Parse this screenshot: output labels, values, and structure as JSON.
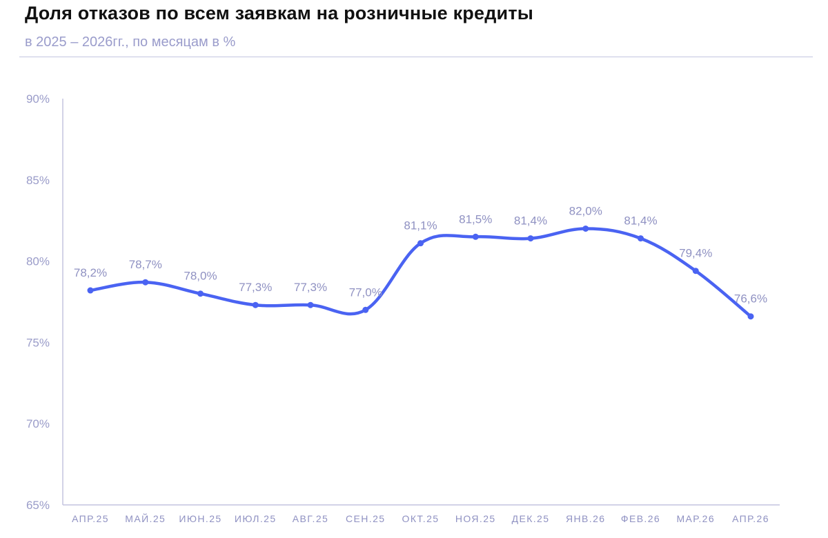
{
  "title": "Доля отказов по всем заявкам на розничные кредиты",
  "subtitle": "в 2025 – 2026гг., по месяцам в %",
  "chart_data": {
    "type": "line",
    "categories": [
      "АПР.25",
      "МАЙ.25",
      "ИЮН.25",
      "ИЮЛ.25",
      "АВГ.25",
      "СЕН.25",
      "ОКТ.25",
      "НОЯ.25",
      "ДЕК.25",
      "ЯНВ.26",
      "ФЕВ.26",
      "МАР.26",
      "АПР.26"
    ],
    "series": [
      {
        "values": [
          78.2,
          78.7,
          78.0,
          77.3,
          77.3,
          77.0,
          81.1,
          81.5,
          81.4,
          82.0,
          81.4,
          79.4,
          76.6
        ],
        "labels": [
          "78,2%",
          "78,7%",
          "78,0%",
          "77,3%",
          "77,3%",
          "77,0%",
          "81,1%",
          "81,5%",
          "81,4%",
          "82,0%",
          "81,4%",
          "79,4%",
          "76,6%"
        ],
        "color": "#4a63f2"
      }
    ],
    "ylim": [
      65,
      90
    ],
    "yticks": [
      90,
      85,
      80,
      75,
      70,
      65
    ],
    "ytick_labels": [
      "90%",
      "85%",
      "80%",
      "75%",
      "70%",
      "65%"
    ],
    "grid": false,
    "colors": {
      "line": "#4a63f2",
      "axis": "#c3c4df",
      "tick_text": "#9a9cc9"
    }
  }
}
